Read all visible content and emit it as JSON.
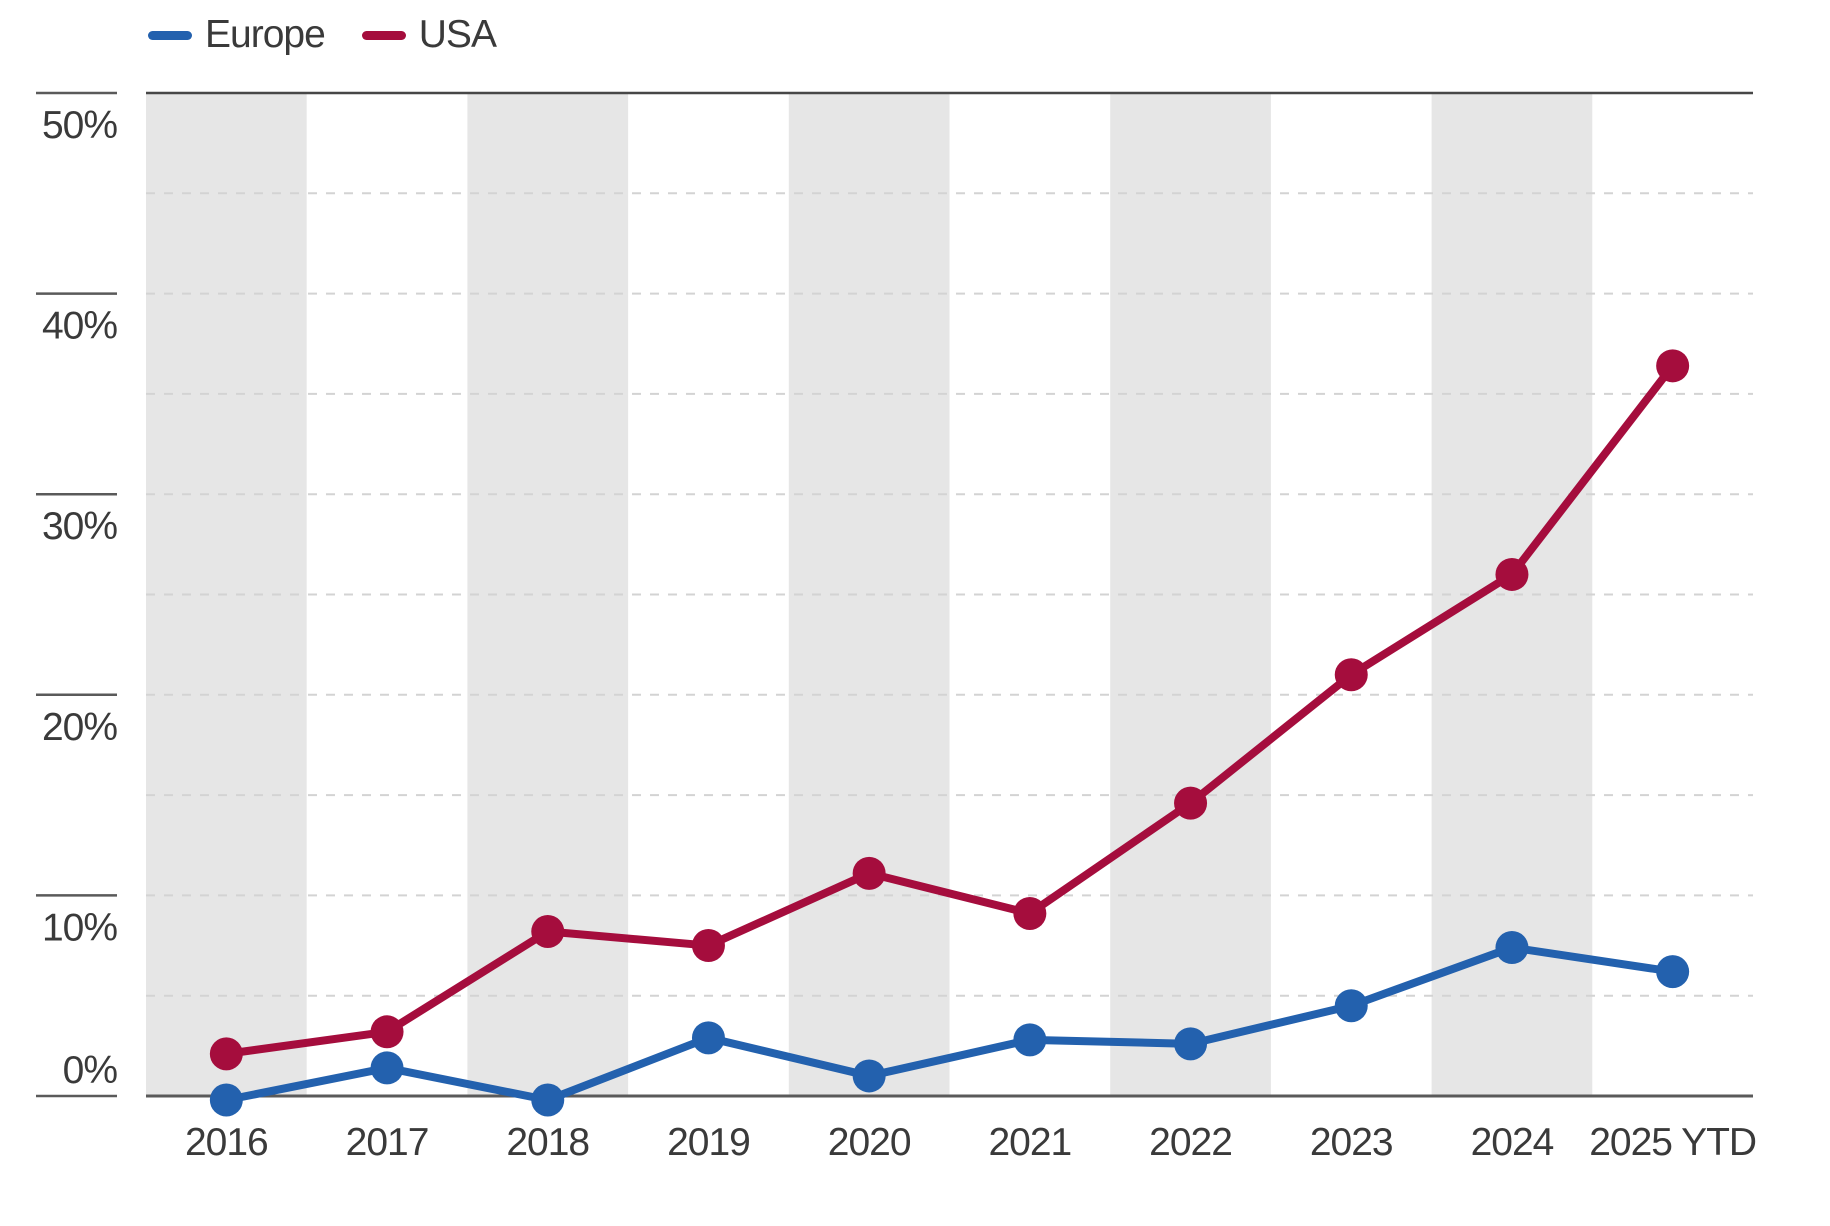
{
  "chart_data": {
    "type": "line",
    "title": "",
    "x_labels": [
      "2016",
      "2017",
      "2018",
      "2019",
      "2020",
      "2021",
      "2022",
      "2023",
      "2024",
      "2025 YTD"
    ],
    "y_ticks": [
      0,
      10,
      20,
      30,
      40,
      50
    ],
    "y_tick_labels": [
      "0%",
      "10%",
      "20%",
      "30%",
      "40%",
      "50%"
    ],
    "minor_gridlines": [
      5,
      10,
      15,
      20,
      25,
      30,
      35,
      40,
      45
    ],
    "ylim": [
      -0.8,
      50
    ],
    "grid": "dashed-horizontal",
    "legend_position": "top-left",
    "background_bands": "alternating-gray-by-year",
    "series": [
      {
        "name": "Europe",
        "color": "#2361ae",
        "values": [
          -0.2,
          1.4,
          -0.2,
          2.9,
          1.0,
          2.8,
          2.6,
          4.5,
          7.4,
          6.2
        ]
      },
      {
        "name": "USA",
        "color": "#a50d3d",
        "values": [
          2.1,
          3.2,
          8.2,
          7.5,
          11.1,
          9.1,
          14.6,
          21.0,
          26.0,
          36.4
        ]
      }
    ]
  },
  "colors": {
    "band": "#e6e6e6",
    "grid": "#d3d3d3",
    "top_border": "#474747",
    "axis": "#5a5a5a",
    "tick": "#5a5a5a",
    "text": "#3a3a3a",
    "background": "#ffffff"
  }
}
